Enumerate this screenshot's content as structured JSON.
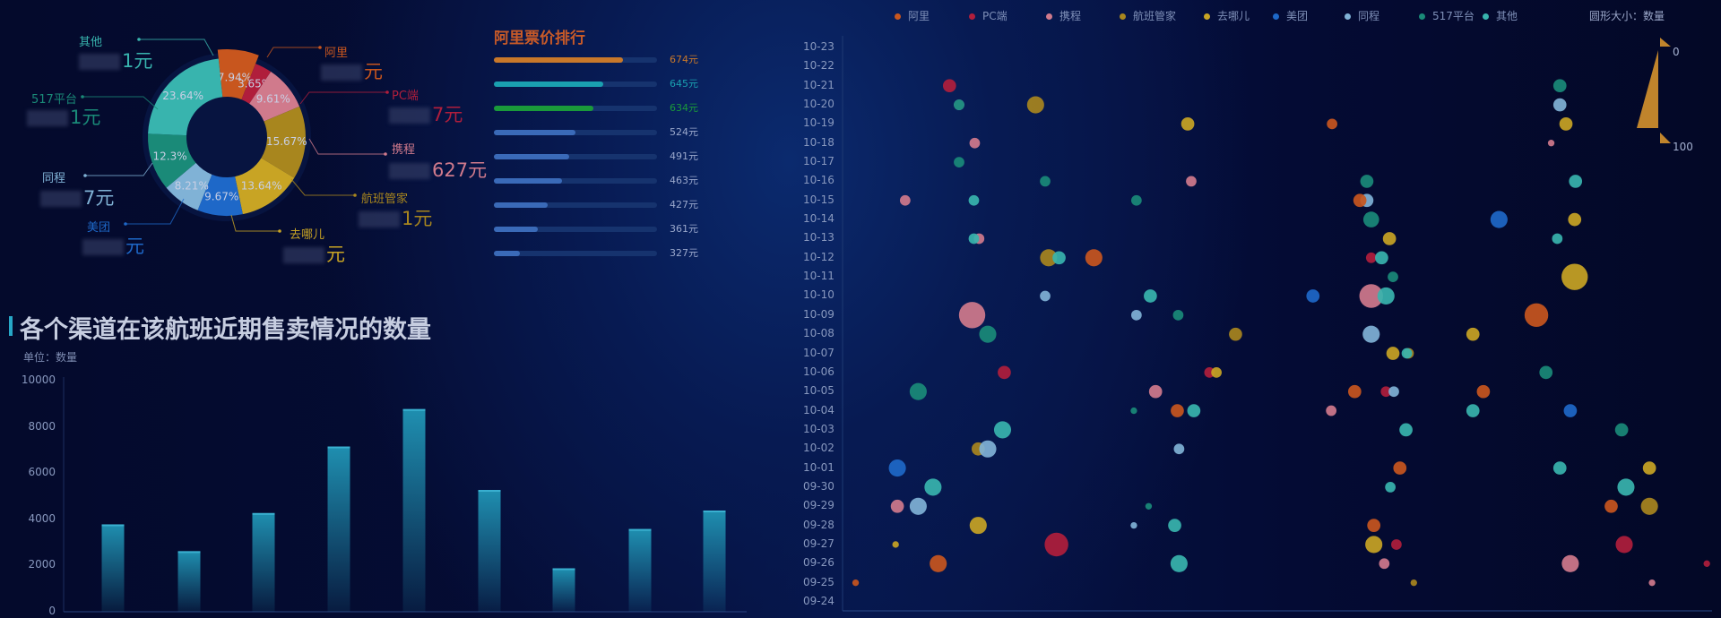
{
  "colors": {
    "阿里": "#c8561e",
    "PC端": "#b01e3c",
    "携程": "#d07a8c",
    "航班管家": "#a8861e",
    "去哪儿": "#c8a424",
    "美团": "#1e68c8",
    "同程": "#80b2d6",
    "517平台": "#1a8a78",
    "其他": "#38b4ae",
    "bar": "#1f8fb0",
    "ranking_title": "#c85a28"
  },
  "chart_data": [
    {
      "type": "pie",
      "variant": "donut",
      "slices": [
        {
          "name": "阿里",
          "percent_label": "7.94%",
          "value": 7.94,
          "price_visible": "元"
        },
        {
          "name": "PC端",
          "percent_label": "3.65%",
          "value": 3.65,
          "price_visible": "7元"
        },
        {
          "name": "携程",
          "percent_label": "9.61%",
          "value": 9.61,
          "price_visible": "627元"
        },
        {
          "name": "航班管家",
          "percent_label": "15.67%",
          "value": 15.67,
          "price_visible": "1元"
        },
        {
          "name": "去哪儿",
          "percent_label": "13.64%",
          "value": 13.64,
          "price_visible": "元"
        },
        {
          "name": "美团",
          "percent_label": "9.67%",
          "value": 9.67,
          "price_visible": "元"
        },
        {
          "name": "同程",
          "percent_label": "8.21%",
          "value": 8.21,
          "price_visible": "7元"
        },
        {
          "name": "517平台",
          "percent_label": "12.3%",
          "value": 12.3,
          "price_visible": "1元"
        },
        {
          "name": "其他",
          "percent_label": "23.64%",
          "value": 23.64,
          "price_visible": "1元"
        }
      ]
    },
    {
      "type": "bar",
      "orientation": "horizontal",
      "title": "阿里票价排行",
      "items": [
        {
          "label": "674元",
          "value": 674,
          "fill_percent": 79,
          "color": "#c8782a"
        },
        {
          "label": "645元",
          "value": 645,
          "fill_percent": 67,
          "color": "#1aa0b0"
        },
        {
          "label": "634元",
          "value": 634,
          "fill_percent": 61,
          "color": "#1a9a3a"
        },
        {
          "label": "524元",
          "value": 524,
          "fill_percent": 50,
          "color": "#3a6ab8"
        },
        {
          "label": "491元",
          "value": 491,
          "fill_percent": 46,
          "color": "#3a6ab8"
        },
        {
          "label": "463元",
          "value": 463,
          "fill_percent": 42,
          "color": "#3a6ab8"
        },
        {
          "label": "427元",
          "value": 427,
          "fill_percent": 33,
          "color": "#3a6ab8"
        },
        {
          "label": "361元",
          "value": 361,
          "fill_percent": 27,
          "color": "#3a6ab8"
        },
        {
          "label": "327元",
          "value": 327,
          "fill_percent": 16,
          "color": "#3a6ab8"
        }
      ]
    },
    {
      "type": "bar",
      "title": "各个渠道在该航班近期售卖情况的数量",
      "subtitle": "单位：数量",
      "ylim": [
        0,
        10000
      ],
      "yticks": [
        "0",
        "2000",
        "4000",
        "6000",
        "8000",
        "10000"
      ],
      "values": [
        3780,
        2620,
        4270,
        7150,
        8770,
        5270,
        1880,
        3580,
        4380
      ]
    },
    {
      "type": "scatter",
      "variant": "bubble",
      "legend": [
        "阿里",
        "PC端",
        "携程",
        "航班管家",
        "去哪儿",
        "美团",
        "同程",
        "517平台",
        "其他"
      ],
      "legend_placement": "top",
      "size_legend": {
        "label": "圆形大小：数量",
        "min": "0",
        "max": "100"
      },
      "xlim": [
        0,
        100
      ],
      "yticks": [
        "09-24",
        "09-25",
        "09-26",
        "09-27",
        "09-28",
        "09-29",
        "09-30",
        "10-01",
        "10-02",
        "10-03",
        "10-04",
        "10-05",
        "10-06",
        "10-07",
        "10-08",
        "10-09",
        "10-10",
        "10-11",
        "10-12",
        "10-13",
        "10-14",
        "10-15",
        "10-16",
        "10-17",
        "10-18",
        "10-19",
        "10-20",
        "10-21",
        "10-22",
        "10-23"
      ],
      "points": [
        [
          12.3,
          "10-21",
          35,
          "PC端"
        ],
        [
          13.4,
          "10-20",
          25,
          "同程"
        ],
        [
          13.4,
          "10-20",
          25,
          "517平台"
        ],
        [
          22.2,
          "10-20",
          50,
          "航班管家"
        ],
        [
          39.7,
          "10-19",
          35,
          "去哪儿"
        ],
        [
          56.3,
          "10-19",
          25,
          "阿里"
        ],
        [
          82.5,
          "10-21",
          35,
          "517平台"
        ],
        [
          82.5,
          "10-20",
          35,
          "同程"
        ],
        [
          83.2,
          "10-19",
          35,
          "去哪儿"
        ],
        [
          81.5,
          "10-18",
          10,
          "携程"
        ],
        [
          15.2,
          "10-18",
          25,
          "携程"
        ],
        [
          13.4,
          "10-17",
          25,
          "517平台"
        ],
        [
          23.3,
          "10-16",
          25,
          "517平台"
        ],
        [
          60.3,
          "10-16",
          35,
          "517平台"
        ],
        [
          60.3,
          "10-15",
          35,
          "同程"
        ],
        [
          84.3,
          "10-16",
          35,
          "其他"
        ],
        [
          7.2,
          "10-15",
          25,
          "携程"
        ],
        [
          15.1,
          "10-15",
          25,
          "其他"
        ],
        [
          33.8,
          "10-15",
          25,
          "517平台"
        ],
        [
          40.1,
          "10-16",
          25,
          "携程"
        ],
        [
          59.5,
          "10-15",
          35,
          "阿里"
        ],
        [
          60.8,
          "10-14",
          45,
          "517平台"
        ],
        [
          75.5,
          "10-14",
          50,
          "美团"
        ],
        [
          84.2,
          "10-14",
          35,
          "去哪儿"
        ],
        [
          15.7,
          "10-13",
          25,
          "携程"
        ],
        [
          15.1,
          "10-13",
          25,
          "其他"
        ],
        [
          62.9,
          "10-13",
          35,
          "去哪儿"
        ],
        [
          82.2,
          "10-13",
          25,
          "其他"
        ],
        [
          23.7,
          "10-12",
          50,
          "航班管家"
        ],
        [
          24.9,
          "10-12",
          35,
          "其他"
        ],
        [
          28.9,
          "10-12",
          50,
          "阿里"
        ],
        [
          60.8,
          "10-12",
          25,
          "PC端"
        ],
        [
          62.0,
          "10-12",
          35,
          "其他"
        ],
        [
          63.3,
          "10-11",
          25,
          "517平台"
        ],
        [
          84.2,
          "10-11",
          85,
          "去哪儿"
        ],
        [
          23.3,
          "10-10",
          25,
          "同程"
        ],
        [
          35.4,
          "10-10",
          35,
          "其他"
        ],
        [
          60.8,
          "10-10",
          75,
          "携程"
        ],
        [
          62.5,
          "10-10",
          50,
          "其他"
        ],
        [
          54.1,
          "10-10",
          35,
          "美团"
        ],
        [
          14.9,
          "10-09",
          85,
          "携程"
        ],
        [
          16.7,
          "10-08",
          50,
          "517平台"
        ],
        [
          33.8,
          "10-09",
          25,
          "同程"
        ],
        [
          38.6,
          "10-09",
          25,
          "517平台"
        ],
        [
          45.2,
          "10-08",
          35,
          "航班管家"
        ],
        [
          60.8,
          "10-08",
          50,
          "同程"
        ],
        [
          72.5,
          "10-08",
          35,
          "去哪儿"
        ],
        [
          79.8,
          "10-09",
          75,
          "阿里"
        ],
        [
          63.3,
          "10-07",
          35,
          "去哪儿"
        ],
        [
          65.1,
          "10-07",
          25,
          "航班管家"
        ],
        [
          64.9,
          "10-07",
          25,
          "其他"
        ],
        [
          80.9,
          "10-06",
          35,
          "517平台"
        ],
        [
          42.2,
          "10-06",
          25,
          "PC端"
        ],
        [
          43.0,
          "10-06",
          25,
          "去哪儿"
        ],
        [
          18.6,
          "10-06",
          35,
          "PC端"
        ],
        [
          8.7,
          "10-05",
          50,
          "517平台"
        ],
        [
          36.0,
          "10-05",
          35,
          "携程"
        ],
        [
          58.9,
          "10-05",
          35,
          "阿里"
        ],
        [
          62.5,
          "10-05",
          25,
          "PC端"
        ],
        [
          63.4,
          "10-05",
          25,
          "同程"
        ],
        [
          73.7,
          "10-05",
          35,
          "阿里"
        ],
        [
          83.7,
          "10-04",
          35,
          "美团"
        ],
        [
          33.5,
          "10-04",
          10,
          "517平台"
        ],
        [
          38.5,
          "10-04",
          35,
          "阿里"
        ],
        [
          40.4,
          "10-04",
          35,
          "其他"
        ],
        [
          56.2,
          "10-04",
          25,
          "携程"
        ],
        [
          64.8,
          "10-03",
          35,
          "其他"
        ],
        [
          72.5,
          "10-04",
          35,
          "其他"
        ],
        [
          18.4,
          "10-03",
          50,
          "其他"
        ],
        [
          15.6,
          "10-02",
          35,
          "航班管家"
        ],
        [
          16.7,
          "10-02",
          50,
          "同程"
        ],
        [
          38.7,
          "10-02",
          25,
          "同程"
        ],
        [
          64.1,
          "10-01",
          35,
          "阿里"
        ],
        [
          89.6,
          "10-03",
          35,
          "517平台"
        ],
        [
          6.3,
          "10-01",
          50,
          "美团"
        ],
        [
          82.5,
          "10-01",
          35,
          "其他"
        ],
        [
          92.8,
          "10-01",
          35,
          "去哪儿"
        ],
        [
          10.4,
          "09-30",
          50,
          "其他"
        ],
        [
          63.0,
          "09-30",
          25,
          "其他"
        ],
        [
          90.1,
          "09-30",
          50,
          "其他"
        ],
        [
          6.3,
          "09-29",
          35,
          "携程"
        ],
        [
          8.7,
          "09-29",
          50,
          "同程"
        ],
        [
          35.2,
          "09-29",
          10,
          "517平台"
        ],
        [
          38.2,
          "09-28",
          35,
          "其他"
        ],
        [
          15.6,
          "09-28",
          50,
          "去哪儿"
        ],
        [
          88.4,
          "09-29",
          35,
          "阿里"
        ],
        [
          92.8,
          "09-29",
          50,
          "航班管家"
        ],
        [
          6.1,
          "09-27",
          10,
          "去哪儿"
        ],
        [
          24.6,
          "09-27",
          75,
          "PC端"
        ],
        [
          33.5,
          "09-28",
          10,
          "同程"
        ],
        [
          61.1,
          "09-28",
          35,
          "阿里"
        ],
        [
          61.1,
          "09-27",
          50,
          "去哪儿"
        ],
        [
          62.3,
          "09-26",
          25,
          "携程"
        ],
        [
          63.7,
          "09-27",
          25,
          "PC端"
        ],
        [
          89.9,
          "09-27",
          50,
          "PC端"
        ],
        [
          11.0,
          "09-26",
          50,
          "阿里"
        ],
        [
          38.7,
          "09-26",
          50,
          "其他"
        ],
        [
          65.7,
          "09-25",
          10,
          "航班管家"
        ],
        [
          83.7,
          "09-26",
          50,
          "携程"
        ],
        [
          93.1,
          "09-25",
          10,
          "携程"
        ],
        [
          1.5,
          "09-25",
          10,
          "阿里"
        ],
        [
          99.4,
          "09-26",
          10,
          "PC端"
        ]
      ]
    }
  ]
}
